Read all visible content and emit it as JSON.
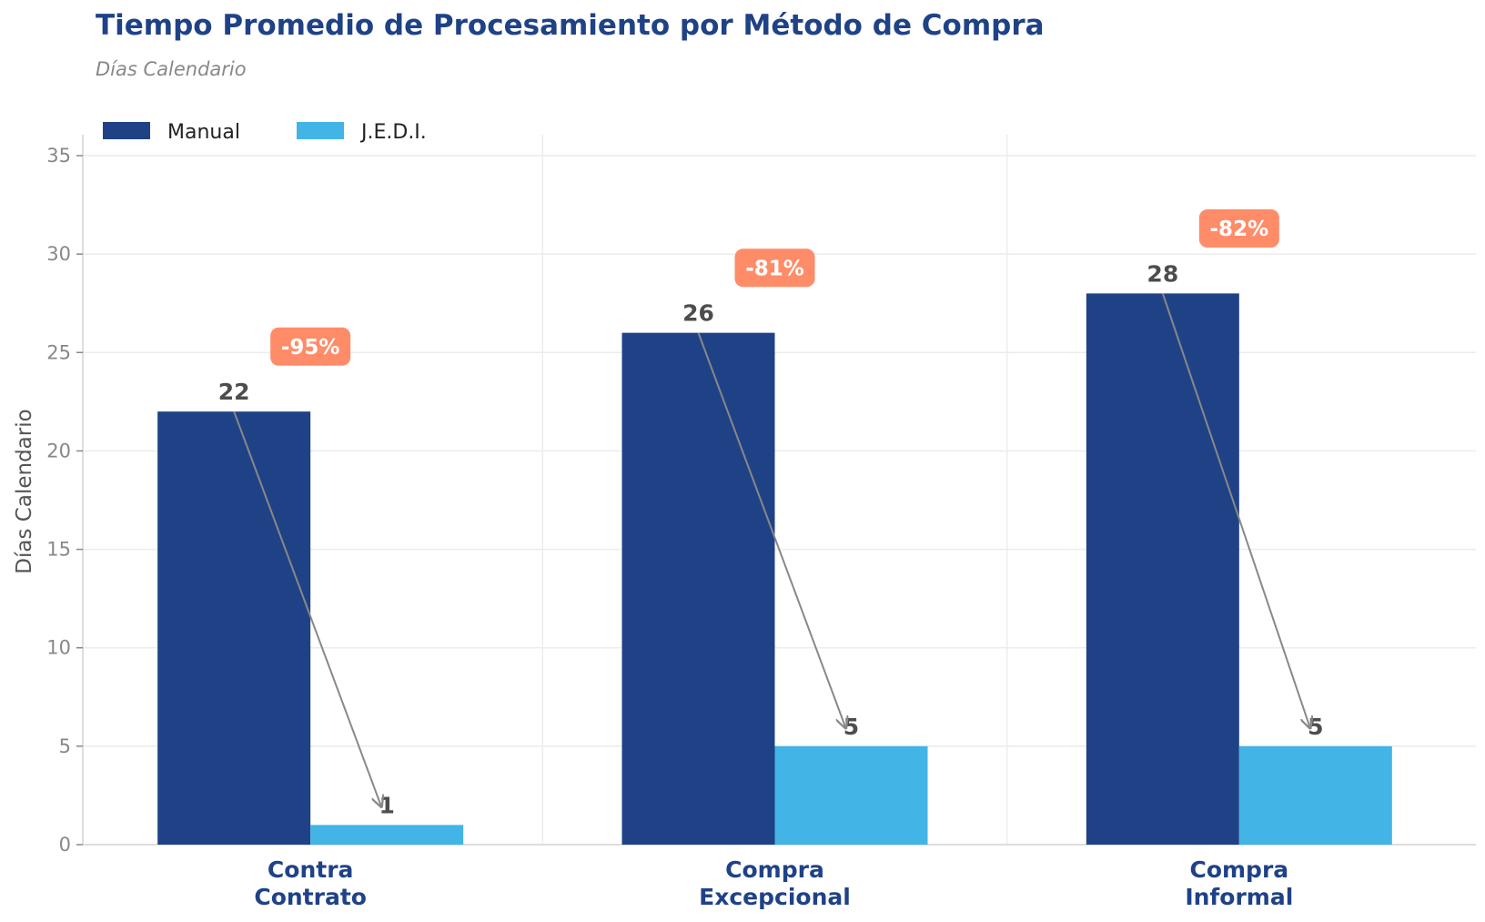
{
  "chart_data": {
    "type": "bar",
    "title": "Tiempo Promedio de Procesamiento por Método de Compra",
    "subtitle": "Días Calendario",
    "ylabel": "Días Calendario",
    "xlabel": "",
    "ylim": [
      0,
      36
    ],
    "yticks": [
      0,
      5,
      10,
      15,
      20,
      25,
      30,
      35
    ],
    "categories": [
      [
        "Contra",
        "Contrato"
      ],
      [
        "Compra",
        "Excepcional"
      ],
      [
        "Compra",
        "Informal"
      ]
    ],
    "series": [
      {
        "name": "Manual",
        "color": "#1f4287",
        "values": [
          22,
          26,
          28
        ]
      },
      {
        "name": "J.E.D.I.",
        "color": "#42b4e6",
        "values": [
          1,
          5,
          5
        ]
      }
    ],
    "annotations": [
      {
        "category": 0,
        "label": "-95%",
        "y": 25.3
      },
      {
        "category": 1,
        "label": "-81%",
        "y": 29.3
      },
      {
        "category": 2,
        "label": "-82%",
        "y": 31.3
      }
    ],
    "annotation_color": "#ff8c69",
    "arrow_color": "#888888",
    "legend_position": "top-left",
    "grid": true
  }
}
